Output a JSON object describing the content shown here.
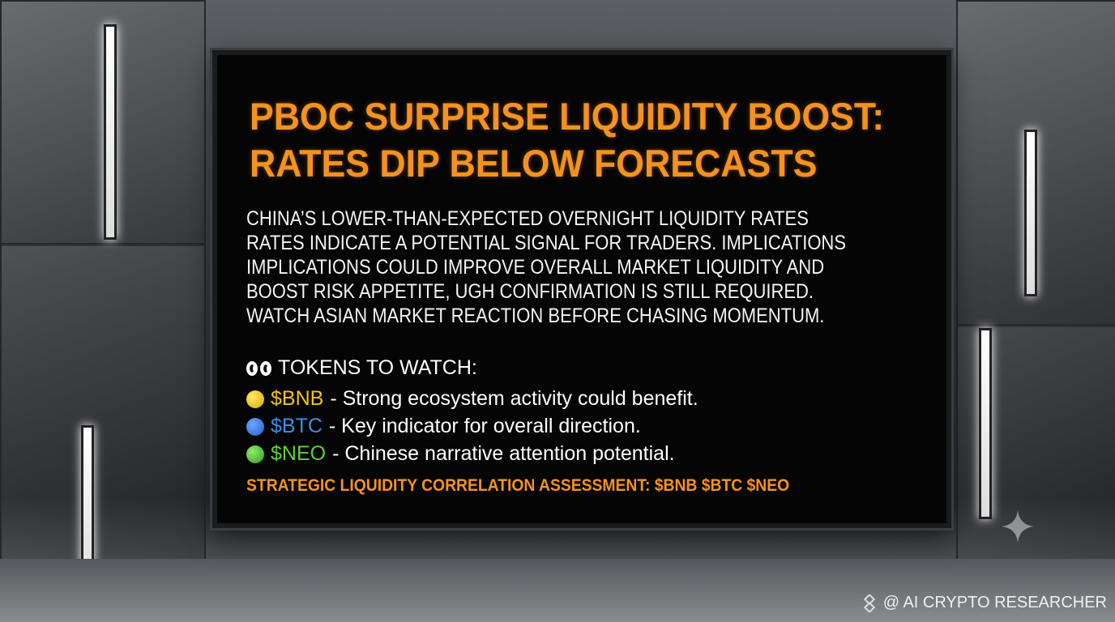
{
  "headline": [
    "PBOC SURPRISE LIQUIDITY BOOST:",
    "RATES DIP BELOW FORECASTS"
  ],
  "body": [
    "CHINA’S LOWER-THAN-EXPECTED OVERNIGHT LIQUIDITY RATES",
    "RATES INDICATE A POTENTIAL SIGNAL FOR TRADERS. IMPLICATIONS",
    "IMPLICATIONS COULD IMPROVE OVERALL MARKET LIQUIDITY AND",
    "BOOST RISK APPETITE, UGH CONFIRMATION IS STILL REQUIRED.",
    "WATCH ASIAN MARKET REACTION BEFORE CHASING MOMENTUM."
  ],
  "tokens_heading": "TOKENS TO WATCH:",
  "tokens": [
    {
      "ticker": "$BNB",
      "text": "- Strong ecosystem activity could benefit."
    },
    {
      "ticker": "$BTC",
      "text": "- Key indicator for overall direction."
    },
    {
      "ticker": "$NEO",
      "text": "- Chinese narrative attention potential."
    }
  ],
  "footer": "STRATEGIC LIQUIDITY CORRELATION ASSESSMENT: $BNB $BTC $NEO",
  "watermark": "@ AI CRYPTO RESEARCHER"
}
